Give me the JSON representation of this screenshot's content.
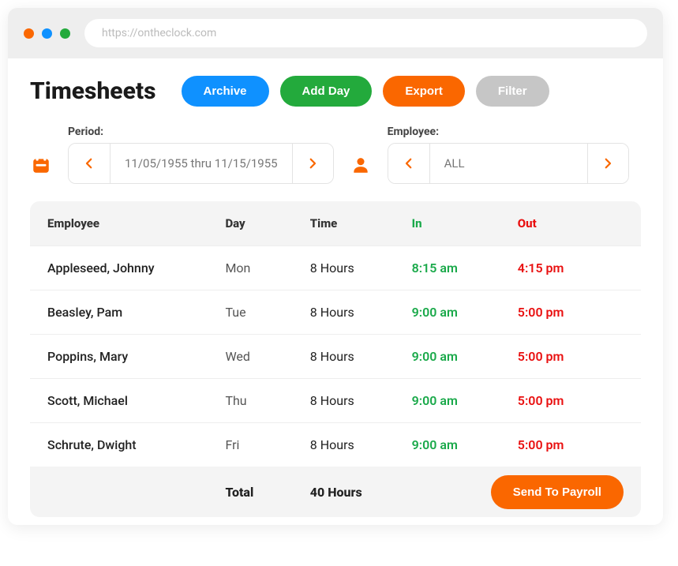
{
  "colors": {
    "orange": "#fa6700",
    "blue": "#0f91ff",
    "green": "#23aa3c",
    "grey": "#c6c6c6",
    "dot_red": "#fa6700",
    "dot_blue": "#0f91ff",
    "dot_green": "#23aa3c",
    "in": "#1aa94a",
    "out": "#e91010"
  },
  "url": "https://ontheclock.com",
  "title": "Timesheets",
  "buttons": {
    "archive": "Archive",
    "addday": "Add Day",
    "export": "Export",
    "filter": "Filter",
    "send": "Send To Payroll"
  },
  "filters": {
    "period_label": "Period:",
    "period_value": "11/05/1955 thru 11/15/1955",
    "employee_label": "Employee:",
    "employee_value": "ALL"
  },
  "table": {
    "headers": {
      "employee": "Employee",
      "day": "Day",
      "time": "Time",
      "in": "In",
      "out": "Out"
    },
    "rows": [
      {
        "employee": "Appleseed, Johnny",
        "day": "Mon",
        "time": "8 Hours",
        "in": "8:15 am",
        "out": "4:15 pm"
      },
      {
        "employee": "Beasley, Pam",
        "day": "Tue",
        "time": "8 Hours",
        "in": "9:00 am",
        "out": "5:00 pm"
      },
      {
        "employee": "Poppins, Mary",
        "day": "Wed",
        "time": "8 Hours",
        "in": "9:00 am",
        "out": "5:00 pm"
      },
      {
        "employee": "Scott, Michael",
        "day": "Thu",
        "time": "8 Hours",
        "in": "9:00 am",
        "out": "5:00 pm"
      },
      {
        "employee": "Schrute, Dwight",
        "day": "Fri",
        "time": "8 Hours",
        "in": "9:00 am",
        "out": "5:00 pm"
      }
    ],
    "footer": {
      "label": "Total",
      "value": "40 Hours"
    }
  }
}
